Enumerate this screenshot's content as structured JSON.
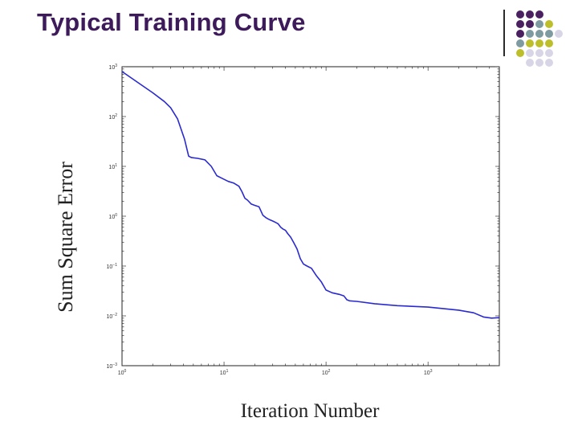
{
  "slide": {
    "title": "Typical Training Curve"
  },
  "decoration": {
    "dot_colors": {
      "purple": "#4a2060",
      "teal": "#7d9ba0",
      "olive": "#bdbf2a",
      "lavender": "#d8d6e6"
    },
    "dot_rows": [
      [
        "purple",
        "purple",
        "purple"
      ],
      [
        "purple",
        "purple",
        "teal",
        "olive"
      ],
      [
        "purple",
        "teal",
        "teal",
        "teal",
        "lavender"
      ],
      [
        "teal",
        "olive",
        "olive",
        "olive"
      ],
      [
        "olive",
        "lavender",
        "lavender",
        "lavender"
      ],
      [
        "lavender",
        "lavender",
        "lavender"
      ]
    ]
  },
  "chart_data": {
    "type": "line",
    "xlabel": "Iteration Number",
    "ylabel": "Sum Square Error",
    "xscale": "log",
    "yscale": "log",
    "xlim": [
      1,
      5000
    ],
    "ylim": [
      0.001,
      1000
    ],
    "grid": false,
    "line_color": "#2a2ad0",
    "x_ticks": [
      {
        "base": "10",
        "exp": "0",
        "value": 1
      },
      {
        "base": "10",
        "exp": "1",
        "value": 10
      },
      {
        "base": "10",
        "exp": "2",
        "value": 100
      },
      {
        "base": "10",
        "exp": "3",
        "value": 1000
      }
    ],
    "y_ticks": [
      {
        "base": "10",
        "exp": "3",
        "value": 1000
      },
      {
        "base": "10",
        "exp": "2",
        "value": 100
      },
      {
        "base": "10",
        "exp": "1",
        "value": 10
      },
      {
        "base": "10",
        "exp": "0",
        "value": 1
      },
      {
        "base": "10",
        "exp": "−1",
        "value": 0.1
      },
      {
        "base": "10",
        "exp": "−2",
        "value": 0.01
      },
      {
        "base": "10",
        "exp": "−3",
        "value": 0.001
      }
    ],
    "series": [
      {
        "x": [
          1,
          1.5,
          2,
          2.6,
          3,
          3.5,
          4.1,
          4.5,
          4.8,
          5.5,
          6.5,
          7.5,
          8.5,
          9.5,
          11,
          12.5,
          14,
          15,
          16,
          17,
          18.5,
          20,
          22,
          24,
          26,
          28,
          30,
          32,
          34,
          36,
          38,
          40,
          42,
          45,
          48,
          52,
          56,
          60,
          65,
          72,
          80,
          90,
          100,
          115,
          135,
          150,
          160,
          170,
          200,
          300,
          500,
          1000,
          2000,
          2800,
          3500,
          4200,
          5000
        ],
        "y": [
          800,
          450,
          300,
          200,
          150,
          90,
          35,
          16,
          15,
          14.5,
          13.5,
          10,
          6.5,
          5.8,
          5,
          4.6,
          4,
          3.1,
          2.3,
          2.1,
          1.75,
          1.65,
          1.55,
          1.05,
          0.92,
          0.85,
          0.8,
          0.75,
          0.7,
          0.6,
          0.55,
          0.52,
          0.45,
          0.38,
          0.3,
          0.22,
          0.14,
          0.11,
          0.1,
          0.09,
          0.065,
          0.048,
          0.033,
          0.029,
          0.027,
          0.025,
          0.021,
          0.02,
          0.0195,
          0.0175,
          0.016,
          0.015,
          0.013,
          0.0115,
          0.0095,
          0.009,
          0.0092
        ]
      }
    ]
  }
}
